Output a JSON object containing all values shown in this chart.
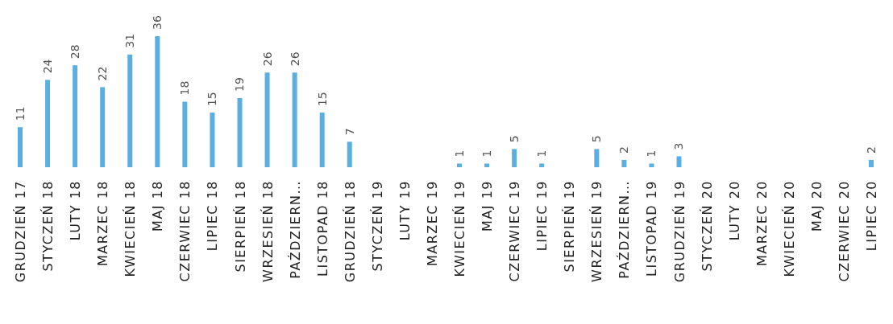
{
  "chart_data": {
    "type": "bar",
    "categories": [
      "GRUDZIEŃ 17",
      "STYCZEŃ 18",
      "LUTY 18",
      "MARZEC 18",
      "KWIECIEŃ 18",
      "MAJ 18",
      "CZERWIEC 18",
      "LIPIEC 18",
      "SIERPIEŃ 18",
      "WRZESIEŃ 18",
      "PAŹDZIERN…",
      "LISTOPAD 18",
      "GRUDZIEŃ 18",
      "STYCZEŃ 19",
      "LUTY 19",
      "MARZEC 19",
      "KWIECIEŃ 19",
      "MAJ 19",
      "CZERWIEC 19",
      "LIPIEC 19",
      "SIERPIEŃ 19",
      "WRZESIEŃ 19",
      "PAŹDZIERN…",
      "LISTOPAD 19",
      "GRUDZIEŃ 19",
      "STYCZEŃ 20",
      "LUTY 20",
      "MARZEC 20",
      "KWIECIEŃ 20",
      "MAJ 20",
      "CZERWIEC 20",
      "LIPIEC 20"
    ],
    "values": [
      11,
      24,
      28,
      22,
      31,
      36,
      18,
      15,
      19,
      26,
      26,
      15,
      7,
      null,
      null,
      null,
      1,
      1,
      5,
      1,
      null,
      5,
      2,
      1,
      3,
      null,
      null,
      null,
      null,
      null,
      null,
      2
    ],
    "color": "#5aaee0",
    "data_labels": true,
    "grid": false,
    "legend": false
  }
}
